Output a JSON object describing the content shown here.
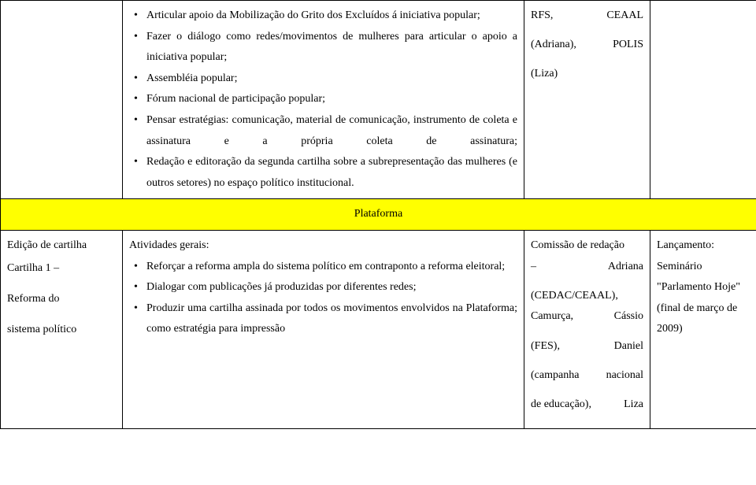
{
  "row1": {
    "col2": {
      "bullets": [
        "Articular apoio da Mobilização do Grito dos Excluídos á iniciativa popular;",
        "Fazer o diálogo como redes/movimentos de mulheres para articular o apoio a iniciativa popular;",
        "Assembléia popular;",
        "Fórum nacional de participação popular;",
        "Pensar estratégias: comunicação, material de comunicação, instrumento de coleta e assinatura e a própria coleta de assinatura;",
        "Redação e editoração da segunda cartilha sobre a subrepresentação das mulheres (e outros setores) no espaço político institucional."
      ]
    },
    "col3": {
      "line1": {
        "left": "RFS,",
        "right": "CEAAL"
      },
      "line2": {
        "left": "(Adriana),",
        "right": "POLIS"
      },
      "line3": "(Liza)"
    }
  },
  "sectionHeader": "Plataforma",
  "row2": {
    "col1": {
      "line1": "Edição de cartilha",
      "line2": "Cartilha 1 –",
      "line3": "Reforma do",
      "line4": "sistema político"
    },
    "col2": {
      "intro": "Atividades gerais:",
      "bullets": [
        "Reforçar a reforma ampla do sistema político em contraponto a reforma eleitoral;",
        "Dialogar com publicações já produzidas por diferentes redes;",
        "Produzir uma cartilha assinada por todos os movimentos envolvidos na Plataforma; como estratégia para impressão"
      ]
    },
    "col3": {
      "line1": "Comissão de redação",
      "line2": {
        "left": "–",
        "right": "Adriana"
      },
      "line3": "(CEDAC/CEAAL),",
      "line4": {
        "left": "Camurça,",
        "right": "Cássio"
      },
      "line5": {
        "left": "(FES),",
        "right": "Daniel"
      },
      "line6": {
        "left": "(campanha",
        "right": "nacional"
      },
      "line7": {
        "left": "de  educação),",
        "right": "Liza"
      }
    },
    "col4": {
      "line1": "Lançamento:",
      "line2": "Seminário",
      "line3": "\"Parlamento Hoje\"",
      "line4": "(final de março de",
      "line5": "2009)"
    }
  }
}
